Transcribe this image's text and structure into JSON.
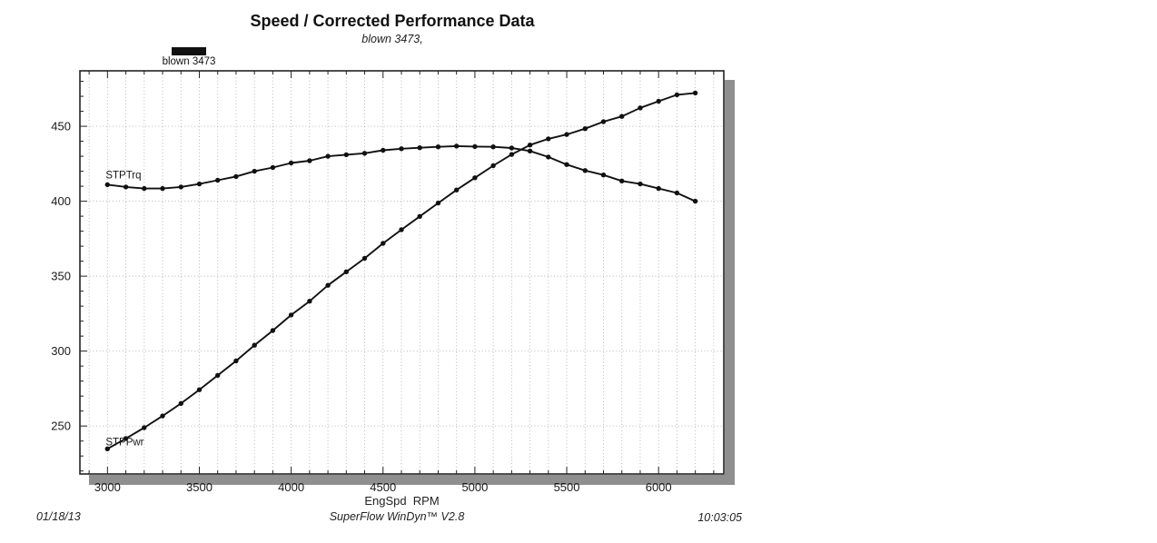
{
  "header": {
    "title": "Speed / Corrected Performance Data",
    "subtitle": "blown 3473,"
  },
  "legend": {
    "label": "blown 3473",
    "swatch_color": "#111111"
  },
  "footer": {
    "date": "01/18/13",
    "software": "SuperFlow WinDyn™ V2.8",
    "time": "10:03:05"
  },
  "chart_data": {
    "type": "line",
    "title": "Speed / Corrected Performance Data",
    "subtitle": "blown 3473,",
    "xlabel": "EngSpd  RPM",
    "ylabel": "",
    "x": [
      3000,
      3100,
      3200,
      3300,
      3400,
      3500,
      3600,
      3700,
      3800,
      3900,
      4000,
      4100,
      4200,
      4300,
      4400,
      4500,
      4600,
      4700,
      4800,
      4900,
      5000,
      5100,
      5200,
      5300,
      5400,
      5500,
      5600,
      5700,
      5800,
      5900,
      6000,
      6100,
      6200
    ],
    "series": [
      {
        "name": "STPTrq",
        "values": [
          411,
          409.5,
          408.5,
          408.5,
          409.5,
          411.5,
          414,
          416.5,
          420,
          422.5,
          425.5,
          427,
          430,
          431,
          432,
          434,
          435,
          435.7,
          436.3,
          436.8,
          436.5,
          436.3,
          435.5,
          433.5,
          429.5,
          424.5,
          420.5,
          417.5,
          413.5,
          411.5,
          408.5,
          405.5,
          400
        ]
      },
      {
        "name": "STPPwr",
        "values": [
          234.8,
          241.7,
          248.9,
          256.7,
          265.1,
          274.2,
          283.8,
          293.4,
          303.9,
          313.7,
          324.1,
          333.3,
          343.9,
          352.9,
          361.9,
          371.9,
          381.0,
          389.9,
          398.8,
          407.5,
          415.6,
          423.7,
          431.2,
          437.5,
          441.6,
          444.5,
          448.4,
          453.1,
          456.6,
          462.3,
          466.7,
          471.0,
          472.2
        ]
      }
    ],
    "xlim": [
      2850,
      6355
    ],
    "ylim": [
      218,
      487
    ],
    "x_major_ticks": [
      3000,
      3500,
      4000,
      4500,
      5000,
      5500,
      6000
    ],
    "y_major_ticks": [
      250,
      300,
      350,
      400,
      450
    ],
    "x_minor_step": 100,
    "y_minor_step": 10,
    "grid": "dotted",
    "legend_position": "top-left",
    "colors": {
      "line": "#111111",
      "grid": "#b0b0b0",
      "axis": "#222222",
      "shadow": "#8f8f8f",
      "text": "#1a1a1a"
    }
  }
}
